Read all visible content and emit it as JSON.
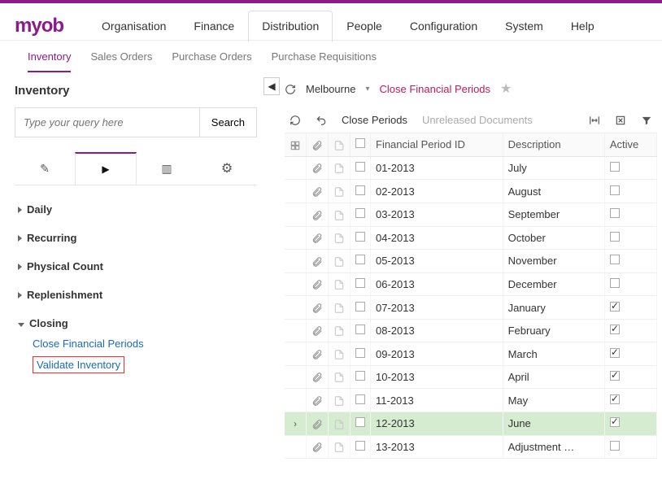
{
  "logo": "myob",
  "mainnav": [
    "Organisation",
    "Finance",
    "Distribution",
    "People",
    "Configuration",
    "System",
    "Help"
  ],
  "mainnav_active": 2,
  "subnav": [
    "Inventory",
    "Sales Orders",
    "Purchase Orders",
    "Purchase Requisitions"
  ],
  "subnav_active": 0,
  "sidebar": {
    "title": "Inventory",
    "search_placeholder": "Type your query here",
    "search_button": "Search",
    "groups": [
      {
        "label": "Daily",
        "expanded": false
      },
      {
        "label": "Recurring",
        "expanded": false
      },
      {
        "label": "Physical Count",
        "expanded": false
      },
      {
        "label": "Replenishment",
        "expanded": false
      },
      {
        "label": "Closing",
        "expanded": true,
        "children": [
          "Close Financial Periods",
          "Validate Inventory"
        ],
        "highlighted_child": 1
      }
    ]
  },
  "breadcrumb": {
    "location": "Melbourne",
    "page": "Close Financial Periods"
  },
  "toolbar": {
    "close_periods": "Close Periods",
    "unreleased": "Unreleased Documents"
  },
  "grid": {
    "columns": [
      "Financial Period ID",
      "Description",
      "Active"
    ],
    "rows": [
      {
        "id": "01-2013",
        "desc": "July",
        "active": false
      },
      {
        "id": "02-2013",
        "desc": "August",
        "active": false
      },
      {
        "id": "03-2013",
        "desc": "September",
        "active": false
      },
      {
        "id": "04-2013",
        "desc": "October",
        "active": false
      },
      {
        "id": "05-2013",
        "desc": "November",
        "active": false
      },
      {
        "id": "06-2013",
        "desc": "December",
        "active": false
      },
      {
        "id": "07-2013",
        "desc": "January",
        "active": true
      },
      {
        "id": "08-2013",
        "desc": "February",
        "active": true
      },
      {
        "id": "09-2013",
        "desc": "March",
        "active": true
      },
      {
        "id": "10-2013",
        "desc": "April",
        "active": true
      },
      {
        "id": "11-2013",
        "desc": "May",
        "active": true
      },
      {
        "id": "12-2013",
        "desc": "June",
        "active": true,
        "selected": true
      },
      {
        "id": "13-2013",
        "desc": "Adjustment …",
        "active": false
      }
    ]
  },
  "colors": {
    "brand": "#8b1a8b",
    "accent": "#c2185b",
    "link": "#1a6bb3",
    "highlight_border": "#d33",
    "selected_row": "#d5ecd0"
  }
}
